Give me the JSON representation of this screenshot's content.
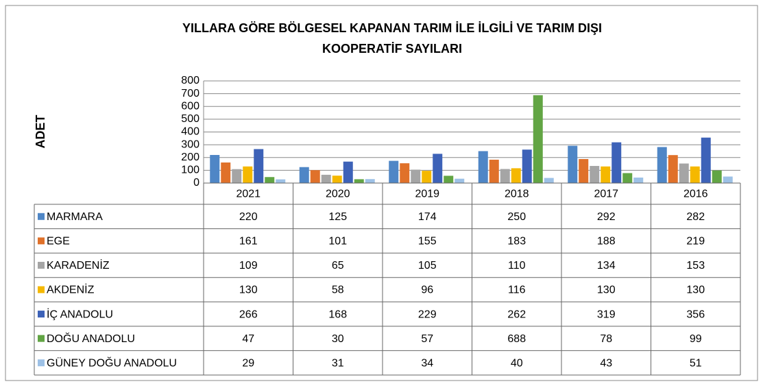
{
  "chart_data": {
    "type": "bar",
    "title": "YILLARA GÖRE BÖLGESEL KAPANAN TARIM İLE İLGİLİ VE TARIM DIŞI",
    "subtitle": "KOOPERATİF SAYILARI",
    "y_label": "ADET",
    "categories": [
      "2021",
      "2020",
      "2019",
      "2018",
      "2017",
      "2016"
    ],
    "series": [
      {
        "name": "MARMARA",
        "color": "#4f86c6",
        "values": [
          220,
          125,
          174,
          250,
          292,
          282
        ]
      },
      {
        "name": "EGE",
        "color": "#e0712a",
        "values": [
          161,
          101,
          155,
          183,
          188,
          219
        ]
      },
      {
        "name": "KARADENİZ",
        "color": "#a5a5a5",
        "values": [
          109,
          65,
          105,
          110,
          134,
          153
        ]
      },
      {
        "name": "AKDENİZ",
        "color": "#f5b800",
        "values": [
          130,
          58,
          96,
          116,
          130,
          130
        ]
      },
      {
        "name": "İÇ ANADOLU",
        "color": "#3d62b8",
        "values": [
          266,
          168,
          229,
          262,
          319,
          356
        ]
      },
      {
        "name": "DOĞU ANADOLU",
        "color": "#62a544",
        "values": [
          47,
          30,
          57,
          688,
          78,
          99
        ]
      },
      {
        "name": "GÜNEY DOĞU ANADOLU",
        "color": "#9dc1e6",
        "values": [
          29,
          31,
          34,
          40,
          43,
          51
        ]
      }
    ],
    "ylim": [
      0,
      800
    ],
    "yticks": [
      0,
      100,
      200,
      300,
      400,
      500,
      600,
      700,
      800
    ],
    "grid": true
  }
}
